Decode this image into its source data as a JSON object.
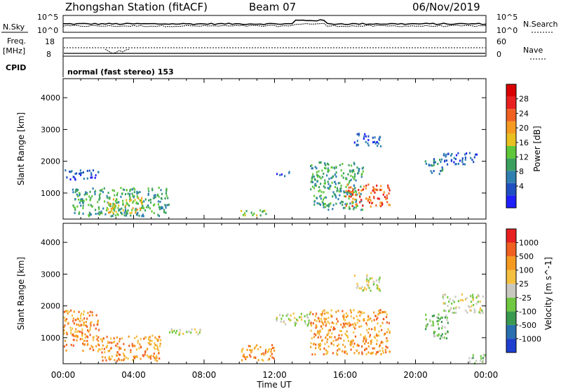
{
  "header": {
    "title": "Zhongshan Station (fitACF)",
    "beam": "Beam 07",
    "date": "06/Nov/2019"
  },
  "strip": {
    "nsky_label": "N.Sky",
    "nsky_top": "10^5",
    "nsky_bottom": "10^0",
    "nsky_right_top": "10^5",
    "nsky_right_bottom": "10^0",
    "nsearch_label": "N.Search",
    "freq_label_1": "Freq.",
    "freq_label_2": "[MHz]",
    "freq_top": "18",
    "freq_bottom": "8",
    "nave_top": "60",
    "nave_bottom": "0",
    "nave_label": "Nave",
    "cpid_label": "CPID",
    "cpid_text": "normal (fast stereo) 153"
  },
  "chart_data": [
    {
      "type": "heatmap",
      "name": "power",
      "ylabel": "Slant Range [km]",
      "xlabel": "Time UT",
      "x_ticks": [
        "00:00",
        "04:00",
        "08:00",
        "12:00",
        "16:00",
        "20:00",
        "00:00"
      ],
      "x_range_hours": [
        0,
        24
      ],
      "y_ticks": [
        1000,
        2000,
        3000,
        4000
      ],
      "ylim": [
        180,
        4600
      ],
      "colorbar": {
        "label": "Power [dB]",
        "ticks": [
          4,
          8,
          12,
          16,
          20,
          24,
          28
        ],
        "colors": [
          "#1f1fff",
          "#1f4fc0",
          "#2f7fb0",
          "#3aa060",
          "#5fc83a",
          "#e8c020",
          "#f59a20",
          "#f06020",
          "#e82020",
          "#d80000"
        ]
      },
      "regions": [
        {
          "t0": 0.0,
          "t1": 2.0,
          "r0": 1450,
          "r1": 1750,
          "level": 1
        },
        {
          "t0": 0.5,
          "t1": 6.0,
          "r0": 300,
          "r1": 1200,
          "level": 3
        },
        {
          "t0": 2.5,
          "t1": 4.5,
          "r0": 400,
          "r1": 900,
          "level": 5
        },
        {
          "t0": 10.0,
          "t1": 11.5,
          "r0": 300,
          "r1": 500,
          "level": 4
        },
        {
          "t0": 12.0,
          "t1": 12.8,
          "r0": 1550,
          "r1": 1700,
          "level": 1
        },
        {
          "t0": 14.0,
          "t1": 17.0,
          "r0": 500,
          "r1": 2000,
          "level": 3
        },
        {
          "t0": 16.0,
          "t1": 18.5,
          "r0": 600,
          "r1": 1300,
          "level": 7
        },
        {
          "t0": 16.5,
          "t1": 18.0,
          "r0": 2500,
          "r1": 2900,
          "level": 1
        },
        {
          "t0": 20.5,
          "t1": 21.5,
          "r0": 1600,
          "r1": 2100,
          "level": 2
        },
        {
          "t0": 21.5,
          "t1": 23.5,
          "r0": 1900,
          "r1": 2300,
          "level": 1
        }
      ]
    },
    {
      "type": "heatmap",
      "name": "velocity",
      "ylabel": "Slant Range [km]",
      "xlabel": "Time UT",
      "x_ticks": [
        "00:00",
        "04:00",
        "08:00",
        "12:00",
        "16:00",
        "20:00",
        "00:00"
      ],
      "x_range_hours": [
        0,
        24
      ],
      "y_ticks": [
        1000,
        2000,
        3000,
        4000
      ],
      "ylim": [
        180,
        4600
      ],
      "colorbar": {
        "label": "Velocity [m s^-1]",
        "ticks": [
          "1000",
          "500",
          "100",
          "25",
          "-25",
          "-100",
          "-500",
          "-1000"
        ],
        "colors": [
          "#1f3fd0",
          "#2a70b0",
          "#3a9a50",
          "#70c840",
          "#c8c8c0",
          "#f5c040",
          "#f59a20",
          "#f06020",
          "#e82020"
        ]
      },
      "regions": [
        {
          "t0": 0.0,
          "t1": 2.0,
          "r0": 600,
          "r1": 1900,
          "level": 6
        },
        {
          "t0": 2.0,
          "t1": 5.5,
          "r0": 300,
          "r1": 1100,
          "level": 6
        },
        {
          "t0": 6.0,
          "t1": 8.0,
          "r0": 1100,
          "r1": 1300,
          "level": 4
        },
        {
          "t0": 10.0,
          "t1": 12.0,
          "r0": 300,
          "r1": 800,
          "level": 6
        },
        {
          "t0": 12.0,
          "t1": 14.0,
          "r0": 1400,
          "r1": 1800,
          "level": 4
        },
        {
          "t0": 14.0,
          "t1": 18.5,
          "r0": 500,
          "r1": 1900,
          "level": 6
        },
        {
          "t0": 16.5,
          "t1": 18.0,
          "r0": 2500,
          "r1": 3000,
          "level": 4
        },
        {
          "t0": 20.5,
          "t1": 21.8,
          "r0": 1000,
          "r1": 1800,
          "level": 3
        },
        {
          "t0": 21.5,
          "t1": 23.8,
          "r0": 1800,
          "r1": 2400,
          "level": 4
        },
        {
          "t0": 23.0,
          "t1": 24.0,
          "r0": 200,
          "r1": 500,
          "level": 3
        }
      ]
    }
  ]
}
